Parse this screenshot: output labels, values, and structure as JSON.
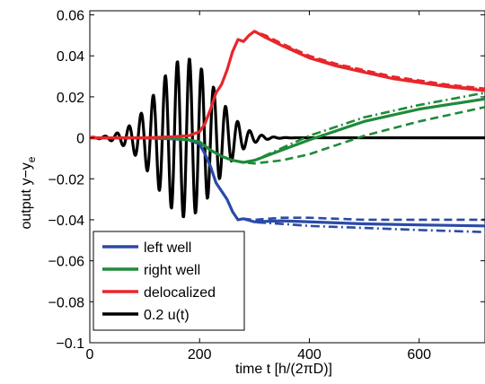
{
  "chart_data": {
    "type": "line",
    "xlabel": "time t [h/(2πD)]",
    "ylabel": "output y−y",
    "ylabel_subscript": "e",
    "xlim": [
      0,
      720
    ],
    "ylim": [
      -0.1,
      0.062
    ],
    "xticks": [
      0,
      200,
      400,
      600
    ],
    "xtick_labels": [
      "0",
      "200",
      "400",
      "600"
    ],
    "yticks": [
      -0.1,
      -0.08,
      -0.06,
      -0.04,
      -0.02,
      0,
      0.02,
      0.04,
      0.06
    ],
    "ytick_labels": [
      "−0.1",
      "−0.08",
      "−0.06",
      "−0.04",
      "−0.02",
      "0",
      "0.02",
      "0.04",
      "0.06"
    ],
    "grid": false,
    "legend_position": "bottom-left",
    "series": [
      {
        "name": "left well",
        "color": "#2b4aa8",
        "line_styles": [
          "solid",
          "dashed",
          "dashdot"
        ],
        "x": [
          0,
          100,
          150,
          180,
          200,
          210,
          220,
          230,
          240,
          250,
          260,
          270,
          280,
          300,
          350,
          400,
          500,
          600,
          720
        ],
        "y": [
          0,
          0,
          -0.0005,
          -0.001,
          -0.003,
          -0.008,
          -0.014,
          -0.022,
          -0.026,
          -0.03,
          -0.036,
          -0.04,
          -0.0395,
          -0.041,
          -0.0405,
          -0.041,
          -0.042,
          -0.0425,
          -0.043
        ],
        "y_dashed": [
          0,
          0,
          -0.0005,
          -0.001,
          -0.003,
          -0.008,
          -0.014,
          -0.022,
          -0.026,
          -0.03,
          -0.036,
          -0.04,
          -0.0395,
          -0.04,
          -0.039,
          -0.039,
          -0.04,
          -0.04,
          -0.04
        ],
        "y_dashdot": [
          0,
          0,
          -0.0005,
          -0.001,
          -0.003,
          -0.008,
          -0.014,
          -0.022,
          -0.026,
          -0.03,
          -0.036,
          -0.04,
          -0.0395,
          -0.0412,
          -0.042,
          -0.043,
          -0.044,
          -0.045,
          -0.046
        ]
      },
      {
        "name": "right well",
        "color": "#1f8a3a",
        "line_styles": [
          "solid",
          "dashed",
          "dashdot"
        ],
        "x": [
          0,
          100,
          150,
          180,
          200,
          220,
          240,
          260,
          280,
          300,
          350,
          400,
          500,
          600,
          720
        ],
        "y": [
          0,
          0,
          -0.0003,
          -0.001,
          -0.002,
          -0.006,
          -0.009,
          -0.011,
          -0.012,
          -0.011,
          -0.006,
          -0.001,
          0.008,
          0.014,
          0.019
        ],
        "y_dashed": [
          0,
          0,
          -0.0003,
          -0.001,
          -0.002,
          -0.006,
          -0.009,
          -0.011,
          -0.012,
          -0.0125,
          -0.011,
          -0.008,
          0.001,
          0.008,
          0.015
        ],
        "y_dashdot": [
          0,
          0,
          -0.0003,
          -0.001,
          -0.002,
          -0.006,
          -0.009,
          -0.011,
          -0.012,
          -0.011,
          -0.005,
          0.001,
          0.01,
          0.016,
          0.022
        ]
      },
      {
        "name": "delocalized",
        "color": "#e8262b",
        "line_styles": [
          "solid",
          "dashed",
          "dashdot"
        ],
        "x": [
          0,
          100,
          150,
          180,
          200,
          210,
          220,
          230,
          240,
          250,
          260,
          270,
          280,
          290,
          300,
          320,
          350,
          400,
          450,
          500,
          550,
          600,
          650,
          720
        ],
        "y": [
          0,
          0,
          0.0005,
          0.001,
          0.003,
          0.007,
          0.014,
          0.022,
          0.026,
          0.033,
          0.042,
          0.048,
          0.047,
          0.05,
          0.052,
          0.049,
          0.045,
          0.039,
          0.035,
          0.032,
          0.029,
          0.027,
          0.025,
          0.023
        ],
        "y_dashed": [
          0,
          0,
          0.0005,
          0.001,
          0.003,
          0.007,
          0.014,
          0.022,
          0.026,
          0.033,
          0.042,
          0.048,
          0.047,
          0.05,
          0.052,
          0.05,
          0.046,
          0.04,
          0.036,
          0.033,
          0.03,
          0.028,
          0.026,
          0.024
        ],
        "y_dashdot": [
          0,
          0,
          0.0005,
          0.001,
          0.003,
          0.007,
          0.014,
          0.022,
          0.026,
          0.033,
          0.042,
          0.048,
          0.047,
          0.05,
          0.052,
          0.0495,
          0.0455,
          0.0395,
          0.0355,
          0.0325,
          0.0295,
          0.0275,
          0.0255,
          0.0235
        ]
      },
      {
        "name": "0.2 u(t)",
        "color": "#000000",
        "line_styles": [
          "solid"
        ],
        "signal": {
          "envelope_center": 175,
          "envelope_width": 75,
          "amplitude": 0.039,
          "period": 22,
          "t_end": 380,
          "y_after": 0
        },
        "x_end": 720
      }
    ]
  }
}
